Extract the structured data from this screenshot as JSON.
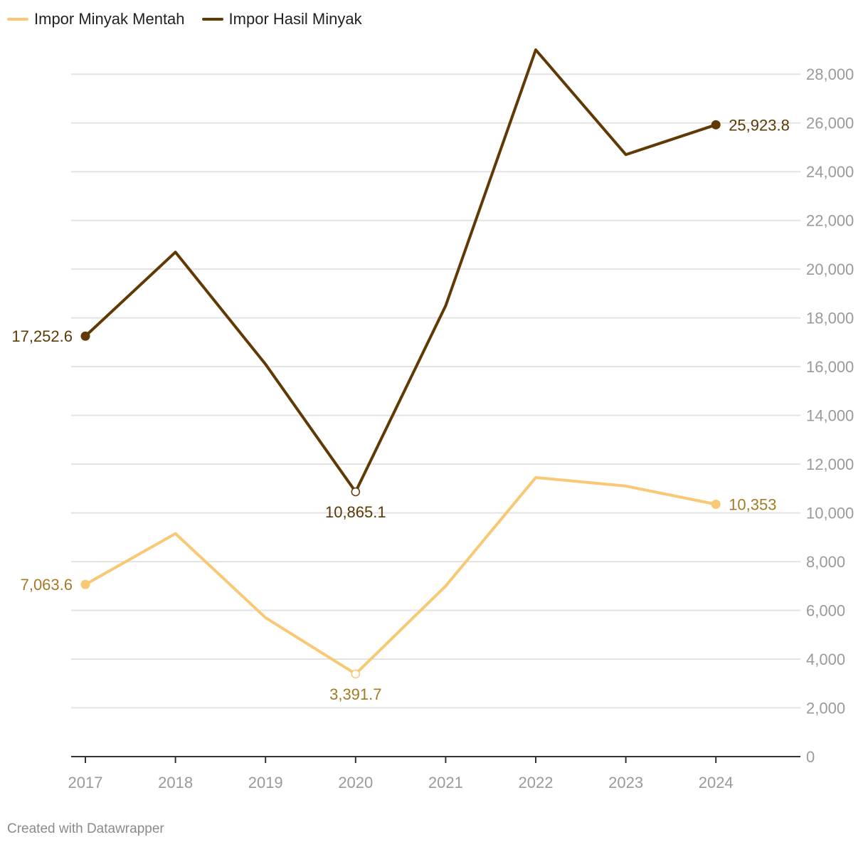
{
  "chart_data": {
    "type": "line",
    "title": "",
    "xlabel": "",
    "ylabel": "",
    "categories": [
      "2017",
      "2018",
      "2019",
      "2020",
      "2021",
      "2022",
      "2023",
      "2024"
    ],
    "ylim": [
      0,
      29000
    ],
    "yticks": [
      0,
      2000,
      4000,
      6000,
      8000,
      10000,
      12000,
      14000,
      16000,
      18000,
      20000,
      22000,
      24000,
      26000,
      28000
    ],
    "ytick_labels": [
      "0",
      "2,000",
      "4,000",
      "6,000",
      "8,000",
      "10,000",
      "12,000",
      "14,000",
      "16,000",
      "18,000",
      "20,000",
      "22,000",
      "24,000",
      "26,000",
      "28,000"
    ],
    "legend_position": "top-left",
    "grid": true,
    "series": [
      {
        "name": "Impor Minyak Mentah",
        "color": "#f9c874",
        "label_color": "#a57a24",
        "values": [
          7063.6,
          9150,
          5700,
          3391.7,
          7000,
          11450,
          11100,
          10353
        ],
        "annotations": [
          {
            "index": 0,
            "text": "7,063.6",
            "pos": "left",
            "marker": "filled"
          },
          {
            "index": 3,
            "text": "3,391.7",
            "pos": "below",
            "marker": "hollow"
          },
          {
            "index": 7,
            "text": "10,353",
            "pos": "right",
            "marker": "filled"
          }
        ]
      },
      {
        "name": "Impor Hasil Minyak",
        "color": "#613905",
        "label_color": "#5b3a06",
        "values": [
          17252.6,
          20700,
          16100,
          10865.1,
          18500,
          29000,
          24700,
          25923.8
        ],
        "annotations": [
          {
            "index": 0,
            "text": "17,252.6",
            "pos": "left",
            "marker": "filled"
          },
          {
            "index": 3,
            "text": "10,865.1",
            "pos": "below",
            "marker": "hollow"
          },
          {
            "index": 7,
            "text": "25,923.8",
            "pos": "right",
            "marker": "filled"
          }
        ]
      }
    ]
  },
  "footer": {
    "credit": "Created with Datawrapper"
  }
}
